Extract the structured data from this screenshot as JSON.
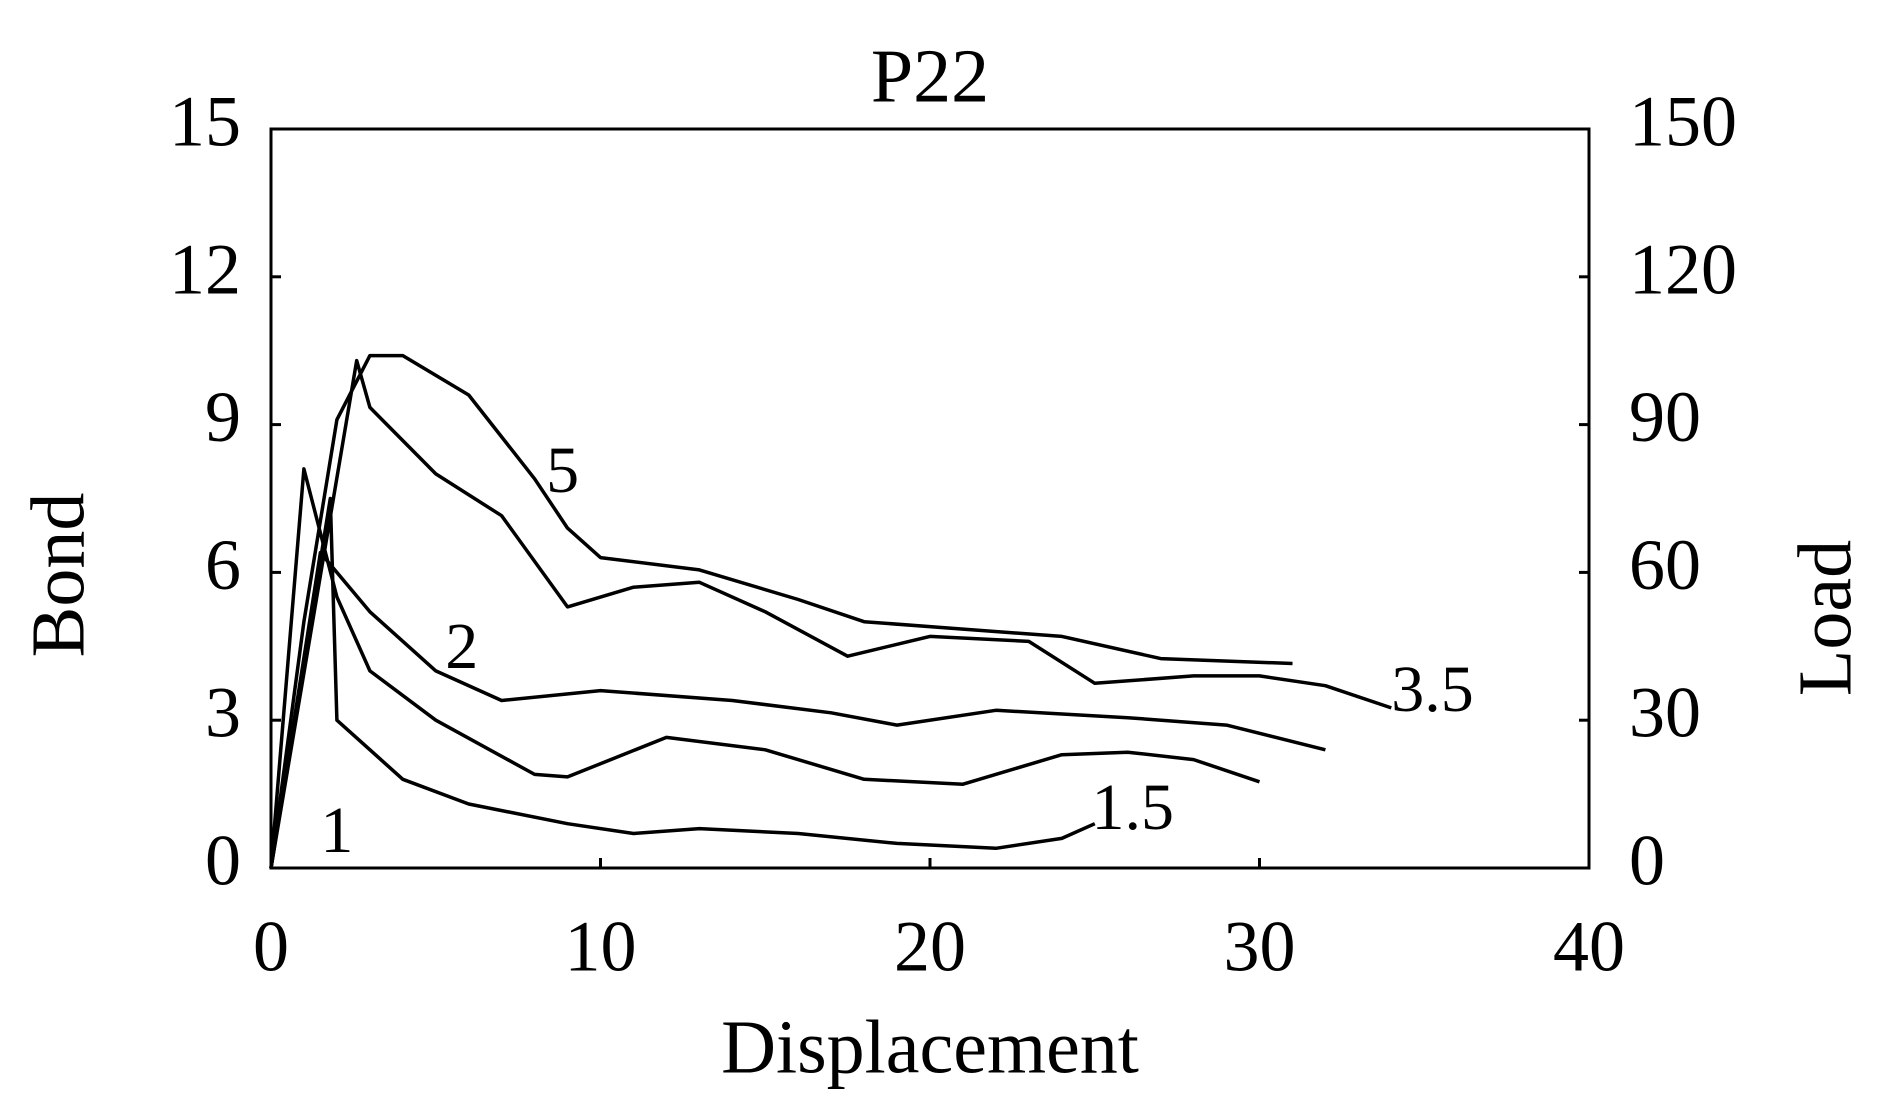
{
  "chart_data": {
    "type": "line",
    "title": "P22",
    "x_label": "Displacement",
    "y_label": "Bond",
    "y2_label": "Load",
    "xlim": [
      0,
      40
    ],
    "xticks": [
      0,
      10,
      20,
      30,
      40
    ],
    "ylim": [
      0,
      15
    ],
    "yticks": [
      0,
      3,
      6,
      9,
      12,
      15
    ],
    "y2lim": [
      0,
      150
    ],
    "y2ticks": [
      0,
      30,
      60,
      90,
      120,
      150
    ],
    "grid": false,
    "series": [
      {
        "name": "1.5",
        "color": "#000000",
        "x": [
          0,
          1.8,
          2,
          4,
          6,
          9,
          11,
          13,
          16,
          19,
          22,
          24,
          25
        ],
        "values": [
          0,
          7.5,
          3.0,
          1.8,
          1.3,
          0.9,
          0.7,
          0.8,
          0.7,
          0.5,
          0.4,
          0.6,
          0.9
        ]
      },
      {
        "name": "1",
        "color": "#000000",
        "x": [
          0,
          1,
          2,
          3,
          5,
          8,
          9,
          12,
          15,
          18,
          21,
          24,
          26,
          28,
          30
        ],
        "values": [
          0,
          8.1,
          5.5,
          4.0,
          3.0,
          1.9,
          1.85,
          2.65,
          2.4,
          1.8,
          1.7,
          2.3,
          2.35,
          2.2,
          1.75
        ]
      },
      {
        "name": "2",
        "color": "#000000",
        "x": [
          0,
          1.5,
          3,
          5,
          7,
          10,
          14,
          17,
          19,
          22,
          26,
          29,
          32
        ],
        "values": [
          0,
          6.4,
          5.2,
          4.0,
          3.4,
          3.6,
          3.4,
          3.15,
          2.9,
          3.2,
          3.05,
          2.9,
          2.4
        ]
      },
      {
        "name": "3.5",
        "color": "#000000",
        "x": [
          0,
          2.6,
          3,
          5,
          7,
          9,
          11,
          13,
          15,
          17.5,
          20,
          23,
          25,
          28,
          30,
          32,
          34
        ],
        "values": [
          0,
          10.3,
          9.35,
          8.0,
          7.15,
          5.3,
          5.7,
          5.8,
          5.2,
          4.3,
          4.7,
          4.6,
          3.75,
          3.9,
          3.9,
          3.7,
          3.25
        ]
      },
      {
        "name": "5",
        "color": "#000000",
        "x": [
          0,
          1,
          2,
          3,
          4,
          6,
          8,
          9,
          10,
          13,
          16,
          18,
          21,
          24,
          27,
          31
        ],
        "values": [
          0,
          5.0,
          9.1,
          10.4,
          10.4,
          9.6,
          7.9,
          6.9,
          6.3,
          6.05,
          5.45,
          5.0,
          4.85,
          4.7,
          4.25,
          4.15
        ]
      }
    ]
  }
}
